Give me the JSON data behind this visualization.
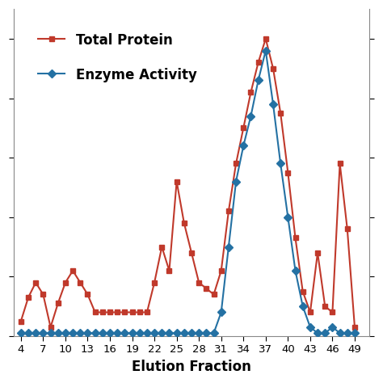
{
  "total_protein_x": [
    4,
    5,
    6,
    7,
    8,
    9,
    10,
    11,
    12,
    13,
    14,
    15,
    16,
    17,
    18,
    19,
    20,
    21,
    22,
    23,
    24,
    25,
    26,
    27,
    28,
    29,
    30,
    31,
    32,
    33,
    34,
    35,
    36,
    37,
    38,
    39,
    40,
    41,
    42,
    43,
    44,
    45,
    46,
    47,
    48,
    49
  ],
  "total_protein_y": [
    5,
    13,
    18,
    14,
    3,
    11,
    18,
    22,
    18,
    14,
    8,
    8,
    8,
    8,
    8,
    8,
    8,
    8,
    18,
    30,
    22,
    52,
    38,
    28,
    18,
    16,
    14,
    22,
    42,
    58,
    70,
    82,
    92,
    100,
    90,
    75,
    55,
    33,
    15,
    8,
    28,
    10,
    8,
    58,
    36,
    3
  ],
  "enzyme_activity_x": [
    4,
    5,
    6,
    7,
    8,
    9,
    10,
    11,
    12,
    13,
    14,
    15,
    16,
    17,
    18,
    19,
    20,
    21,
    22,
    23,
    24,
    25,
    26,
    27,
    28,
    29,
    30,
    31,
    32,
    33,
    34,
    35,
    36,
    37,
    38,
    39,
    40,
    41,
    42,
    43,
    44,
    45,
    46,
    47,
    48,
    49
  ],
  "enzyme_activity_y": [
    1,
    1,
    1,
    1,
    1,
    1,
    1,
    1,
    1,
    1,
    1,
    1,
    1,
    1,
    1,
    1,
    1,
    1,
    1,
    1,
    1,
    1,
    1,
    1,
    1,
    1,
    1,
    8,
    30,
    52,
    64,
    74,
    86,
    96,
    78,
    58,
    40,
    22,
    10,
    3,
    1,
    1,
    3,
    1,
    1,
    1
  ],
  "total_protein_color": "#C0392B",
  "enzyme_activity_color": "#2471A3",
  "xlabel": "Elution Fraction",
  "xticks": [
    4,
    7,
    10,
    13,
    16,
    19,
    22,
    25,
    28,
    31,
    34,
    37,
    40,
    43,
    46,
    49
  ],
  "xlim": [
    3,
    51
  ],
  "ylim": [
    0,
    110
  ],
  "yticks": [
    0,
    20,
    40,
    60,
    80,
    100
  ],
  "legend_total_protein": "Total Protein",
  "legend_enzyme_activity": "Enzyme Activity",
  "background_color": "#ffffff",
  "marker_size_square": 5,
  "marker_size_diamond": 5,
  "linewidth": 1.5,
  "legend_fontsize": 12,
  "xlabel_fontsize": 12,
  "xtick_fontsize": 9.5
}
